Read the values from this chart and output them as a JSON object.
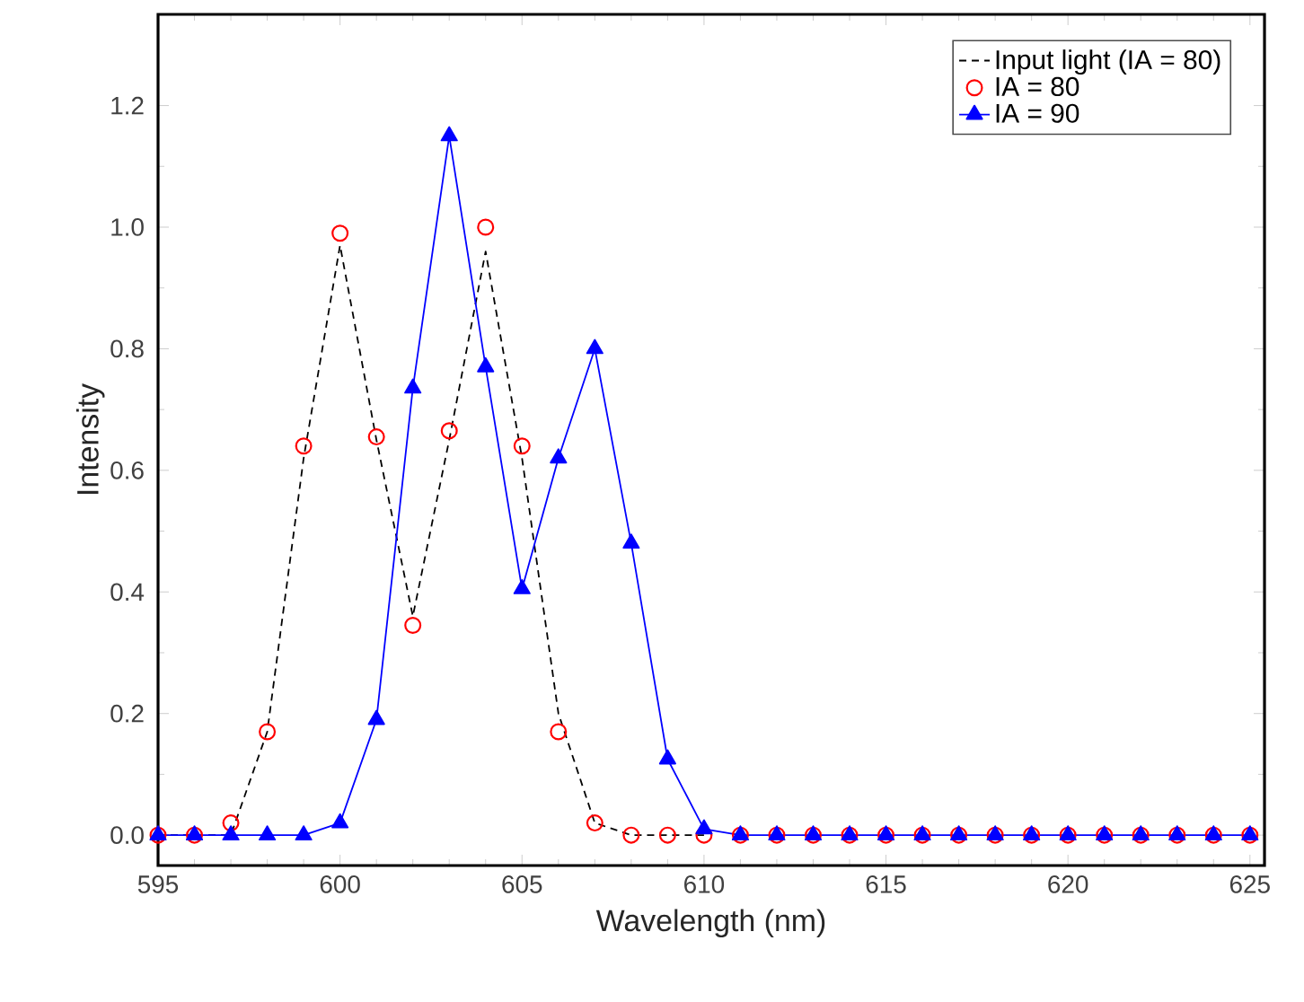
{
  "chart_data": {
    "type": "line",
    "xlabel": "Wavelength (nm)",
    "ylabel": "Intensity",
    "x": [
      595,
      596,
      597,
      598,
      599,
      600,
      601,
      602,
      603,
      604,
      605,
      606,
      607,
      608,
      609,
      610,
      611,
      612,
      613,
      614,
      615,
      616,
      617,
      618,
      619,
      620,
      621,
      622,
      623,
      624,
      625
    ],
    "series": [
      {
        "name": "Input light (IA = 80)",
        "color": "#000000",
        "marker": "none",
        "line_style": "dashed",
        "values": [
          0,
          0,
          0,
          0.17,
          0.62,
          0.97,
          0.65,
          0.36,
          0.65,
          0.96,
          0.62,
          0.2,
          0.02,
          0,
          0,
          0,
          null,
          null,
          null,
          null,
          null,
          null,
          null,
          null,
          null,
          null,
          null,
          null,
          null,
          null,
          null
        ]
      },
      {
        "name": "IA = 80",
        "type": "scatter",
        "color": "#ff0000",
        "marker": "circle",
        "values": [
          0,
          0,
          0.02,
          0.17,
          0.64,
          0.99,
          0.655,
          0.345,
          0.665,
          1.0,
          0.64,
          0.17,
          0.02,
          0,
          0,
          0,
          0,
          0,
          0,
          0,
          0,
          0,
          0,
          0,
          0,
          0,
          0,
          0,
          0,
          0,
          0
        ]
      },
      {
        "name": "IA = 90",
        "color": "#0000ff",
        "marker": "triangle",
        "line_style": "solid",
        "values": [
          0,
          0,
          0,
          0,
          0,
          0.02,
          0.19,
          0.735,
          1.15,
          0.77,
          0.405,
          0.62,
          0.8,
          0.48,
          0.125,
          0.01,
          0,
          0,
          0,
          0,
          0,
          0,
          0,
          0,
          0,
          0,
          0,
          0,
          0,
          0,
          0
        ]
      }
    ],
    "xlim": [
      595,
      625.4
    ],
    "ylim": [
      -0.05,
      1.35
    ],
    "xticks": [
      595,
      600,
      605,
      610,
      615,
      620,
      625
    ],
    "yticks": [
      {
        "value": 0,
        "label": "0.0"
      },
      {
        "value": 0.2,
        "label": "0.2"
      },
      {
        "value": 0.4,
        "label": "0.4"
      },
      {
        "value": 0.6,
        "label": "0.6"
      },
      {
        "value": 0.8,
        "label": "0.8"
      },
      {
        "value": 1.0,
        "label": "1.0"
      },
      {
        "value": 1.2,
        "label": "1.2"
      }
    ],
    "legend": "top right"
  }
}
